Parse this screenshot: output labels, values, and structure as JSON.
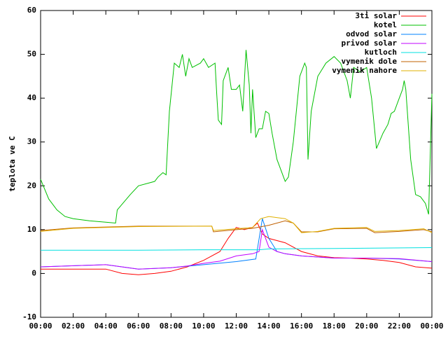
{
  "chart_data": {
    "type": "line",
    "y_label": "teplota ve C",
    "xlim": [
      0,
      24
    ],
    "xticks": [
      {
        "value": 0,
        "label": "00:00"
      },
      {
        "value": 2,
        "label": "02:00"
      },
      {
        "value": 4,
        "label": "04:00"
      },
      {
        "value": 6,
        "label": "06:00"
      },
      {
        "value": 8,
        "label": "08:00"
      },
      {
        "value": 10,
        "label": "10:00"
      },
      {
        "value": 12,
        "label": "12:00"
      },
      {
        "value": 14,
        "label": "14:00"
      },
      {
        "value": 16,
        "label": "16:00"
      },
      {
        "value": 18,
        "label": "18:00"
      },
      {
        "value": 20,
        "label": "20:00"
      },
      {
        "value": 22,
        "label": "22:00"
      },
      {
        "value": 24,
        "label": "00:00"
      }
    ],
    "ylim": [
      -10,
      60
    ],
    "yticks": [
      -10,
      0,
      10,
      20,
      30,
      40,
      50,
      60
    ],
    "grid": false,
    "legend": "top-right",
    "series": [
      {
        "name": "3ti solar",
        "color": "#ff0000",
        "x": [
          0,
          4,
          5,
          6,
          7,
          8,
          9,
          10,
          11,
          11.5,
          12,
          12.5,
          13,
          13.3,
          13.6,
          14,
          15,
          16,
          17,
          18,
          19,
          20,
          21,
          22,
          23,
          24
        ],
        "values": [
          1,
          1,
          0,
          -0.3,
          0,
          0.5,
          1.5,
          3,
          5,
          8,
          10.5,
          10,
          10.5,
          11.5,
          9,
          8,
          7,
          5,
          4,
          3.6,
          3.5,
          3.3,
          3,
          2.5,
          1.5,
          1.2
        ]
      },
      {
        "name": "kotel",
        "color": "#00c000",
        "x": [
          0,
          0.5,
          1,
          1.5,
          2,
          3,
          4,
          4.6,
          4.7,
          5.5,
          6,
          7,
          7.2,
          7.5,
          7.7,
          7.9,
          8.2,
          8.5,
          8.7,
          8.9,
          9.1,
          9.3,
          9.8,
          10,
          10.3,
          10.7,
          10.8,
          10.9,
          11.1,
          11.2,
          11.5,
          11.7,
          12,
          12.2,
          12.4,
          12.6,
          12.8,
          12.9,
          13,
          13.2,
          13.4,
          13.6,
          13.8,
          14,
          14.2,
          14.5,
          15,
          15.2,
          15.5,
          15.9,
          16.2,
          16.3,
          16.4,
          16.6,
          17,
          17.5,
          18,
          18.4,
          18.8,
          19,
          19.2,
          19.6,
          20,
          20.3,
          20.6,
          21,
          21.3,
          21.5,
          21.7,
          22,
          22.2,
          22.3,
          22.4,
          22.7,
          23,
          23.3,
          23.6,
          23.8,
          24
        ],
        "values": [
          21.5,
          17,
          14.5,
          13,
          12.5,
          12,
          11.7,
          11.5,
          14.5,
          18,
          20,
          21,
          22,
          23,
          22.5,
          37,
          48,
          47,
          50,
          45,
          49,
          47,
          48,
          49,
          47,
          48,
          41,
          35,
          34,
          44,
          47,
          42,
          42,
          43,
          37,
          51,
          43,
          32,
          42,
          31,
          33,
          33,
          37,
          36.5,
          32,
          26,
          21,
          22,
          30,
          45,
          48,
          47,
          26,
          37,
          45,
          48,
          49.5,
          48,
          44,
          40,
          47,
          46,
          47,
          40,
          28.5,
          32,
          34,
          36.5,
          37,
          40,
          42,
          44,
          42,
          26,
          18,
          17.5,
          16,
          13.5,
          41
        ]
      },
      {
        "name": "odvod solar",
        "color": "#0080ff",
        "x": [
          0,
          4,
          6,
          8,
          10,
          12,
          13.2,
          13.6,
          14,
          14.5,
          15,
          16,
          18,
          20,
          22,
          24
        ],
        "values": [
          1.5,
          2,
          1,
          1.3,
          2,
          2.7,
          3.3,
          12.5,
          8,
          5,
          4.5,
          4,
          3.5,
          3.5,
          3.3,
          2.7
        ]
      },
      {
        "name": "privod solar",
        "color": "#c000ff",
        "x": [
          0,
          4,
          6,
          8,
          9,
          10,
          11,
          12,
          13,
          13.4,
          13.6,
          14,
          14.5,
          15,
          16,
          18,
          20,
          22,
          24
        ],
        "values": [
          1.5,
          2,
          1,
          1.3,
          1.7,
          2.3,
          2.8,
          4,
          4.5,
          5,
          10,
          6,
          5,
          4.5,
          4,
          3.5,
          3.5,
          3.4,
          2.7
        ]
      },
      {
        "name": "kutloch",
        "color": "#00e0e0",
        "x": [
          0,
          6,
          10,
          13.4,
          14,
          18,
          24
        ],
        "values": [
          5.3,
          5.3,
          5.4,
          5.4,
          5.6,
          5.7,
          5.9
        ]
      },
      {
        "name": "vymenik dole",
        "color": "#c06000",
        "x": [
          0,
          2,
          4,
          6,
          10.5,
          10.6,
          12,
          13,
          14,
          15,
          15.5,
          16,
          17,
          18,
          20,
          20.5,
          22,
          23.5,
          24
        ],
        "values": [
          9.8,
          10.4,
          10.6,
          10.8,
          10.8,
          9.5,
          10,
          10.3,
          11,
          12,
          11.5,
          9.5,
          9.5,
          10.2,
          10.3,
          9.3,
          9.6,
          10,
          9.5
        ]
      },
      {
        "name": "vymenik nahore",
        "color": "#e0b000",
        "x": [
          0,
          2,
          4,
          6,
          10.5,
          10.6,
          12,
          13,
          13.5,
          14,
          15,
          15.5,
          16,
          17,
          18,
          20,
          20.5,
          22,
          23.5,
          24
        ],
        "values": [
          9.6,
          10.3,
          10.5,
          10.7,
          10.8,
          9.8,
          10.2,
          10.5,
          12.5,
          13,
          12.5,
          11.5,
          9.3,
          9.6,
          10.3,
          10.5,
          9.6,
          9.8,
          10.2,
          9.3
        ]
      }
    ]
  }
}
